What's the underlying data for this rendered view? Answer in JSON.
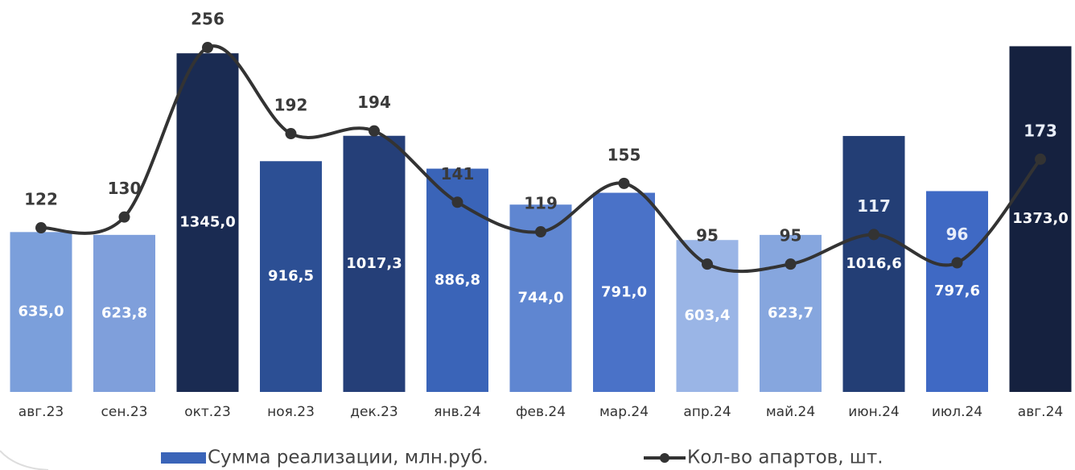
{
  "chart_data": {
    "type": "bar-line",
    "categories": [
      "авг.23",
      "сен.23",
      "окт.23",
      "ноя.23",
      "дек.23",
      "янв.24",
      "фев.24",
      "мар.24",
      "апр.24",
      "май.24",
      "июн.24",
      "июл.24",
      "авг.24"
    ],
    "series": [
      {
        "name": "Сумма реализации, млн.руб.",
        "type": "bar",
        "color": "#3a64b8",
        "colors": [
          "#7b9fdb",
          "#7f9fdb",
          "#1a2b52",
          "#2c4f94",
          "#253f78",
          "#3a64b8",
          "#5f86d1",
          "#4a72c8",
          "#9ab5e6",
          "#86a6de",
          "#233e75",
          "#3f69c4",
          "#15213f"
        ],
        "values": [
          635.0,
          623.8,
          1345.0,
          916.5,
          1017.3,
          886.8,
          744.0,
          791.0,
          603.4,
          623.7,
          1016.6,
          797.6,
          1373.0
        ],
        "value_labels": [
          "635,0",
          "623,8",
          "1345,0",
          "916,5",
          "1017,3",
          "886,8",
          "744,0",
          "791,0",
          "603,4",
          "623,7",
          "1016,6",
          "797,6",
          "1373,0"
        ]
      },
      {
        "name": "Кол-во апартов, шт.",
        "type": "line",
        "axis": "y2",
        "color": "#333333",
        "values": [
          122,
          130,
          256,
          192,
          194,
          141,
          119,
          155,
          95,
          95,
          117,
          96,
          173
        ]
      }
    ],
    "ylim": [
      0,
      1400
    ],
    "y2lim": [
      0,
      262
    ]
  }
}
